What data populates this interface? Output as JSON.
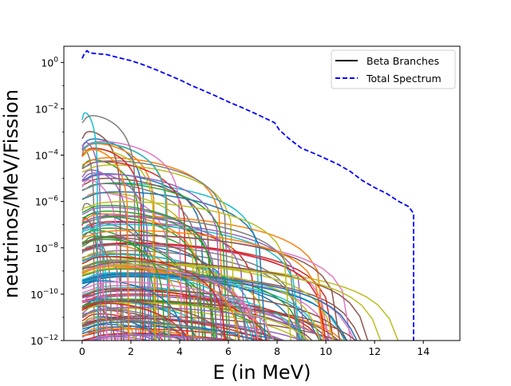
{
  "chart_data": {
    "type": "line",
    "title": "",
    "xlabel": "E (in MeV)",
    "ylabel": "neutrinos/MeV/Fission",
    "xlim": [
      -0.75,
      15.5
    ],
    "ylim": [
      1e-12,
      5
    ],
    "yscale": "log",
    "grid": false,
    "legend_position": "top-right",
    "x_ticks": [
      0,
      2,
      4,
      6,
      8,
      10,
      12,
      14
    ],
    "y_ticks": [
      {
        "value": 1e-12,
        "base": "10",
        "exp": "−12"
      },
      {
        "value": 1e-10,
        "base": "10",
        "exp": "−10"
      },
      {
        "value": 1e-08,
        "base": "10",
        "exp": "−8"
      },
      {
        "value": 1e-06,
        "base": "10",
        "exp": "−6"
      },
      {
        "value": 0.0001,
        "base": "10",
        "exp": "−4"
      },
      {
        "value": 0.01,
        "base": "10",
        "exp": "−2"
      },
      {
        "value": 1,
        "base": "10",
        "exp": "0"
      }
    ],
    "legend": [
      {
        "label": "Beta Branches",
        "style": "solid",
        "color": "#000000"
      },
      {
        "label": "Total Spectrum",
        "style": "dashed",
        "color": "#0000ff"
      }
    ],
    "total_spectrum": {
      "name": "Total Spectrum",
      "color": "#0000ff",
      "x": [
        0.0,
        0.1,
        0.2,
        0.3,
        0.6,
        1.0,
        1.5,
        2.0,
        2.5,
        3.0,
        3.5,
        4.0,
        4.5,
        5.0,
        5.5,
        6.0,
        6.5,
        7.0,
        7.5,
        7.9,
        8.1,
        8.5,
        9.0,
        9.5,
        10.0,
        10.5,
        11.0,
        11.5,
        12.0,
        12.5,
        13.0,
        13.4,
        13.6,
        13.6
      ],
      "y": [
        1.5,
        2.5,
        3.2,
        2.6,
        2.4,
        2.2,
        1.6,
        1.2,
        0.8,
        0.5,
        0.3,
        0.18,
        0.1,
        0.06,
        0.035,
        0.02,
        0.012,
        0.007,
        0.004,
        0.0025,
        0.0012,
        0.0005,
        0.0002,
        0.00012,
        7e-05,
        4e-05,
        2e-05,
        8e-06,
        4e-06,
        2.2e-06,
        1e-06,
        6e-07,
        3e-07,
        1e-12
      ]
    },
    "branch_series": {
      "name": "Beta Branches",
      "count": 220,
      "endpoint_range_MeV": [
        0.0,
        13.6
      ],
      "palette": [
        "#1f77b4",
        "#ff7f0e",
        "#2ca02c",
        "#d62728",
        "#9467bd",
        "#8c564b",
        "#e377c2",
        "#7f7f7f",
        "#bcbd22",
        "#17becf"
      ]
    }
  }
}
